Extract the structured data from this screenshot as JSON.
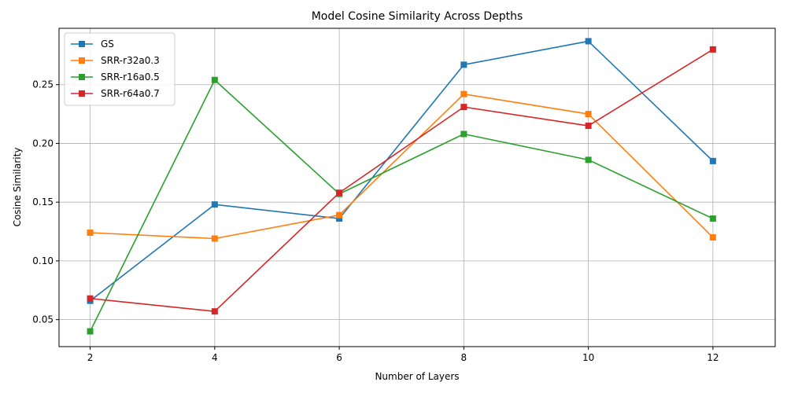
{
  "chart_data": {
    "type": "line",
    "title": "Model Cosine Similarity Across Depths",
    "xlabel": "Number of Layers",
    "ylabel": "Cosine Similarity",
    "x": [
      2,
      4,
      6,
      8,
      10,
      12
    ],
    "x_ticks": [
      "2",
      "4",
      "6",
      "8",
      "10",
      "12"
    ],
    "y_ticks": [
      "0.05",
      "0.10",
      "0.15",
      "0.20",
      "0.25"
    ],
    "y_tick_values": [
      0.05,
      0.1,
      0.15,
      0.2,
      0.25
    ],
    "xlim": [
      1.5,
      13.0
    ],
    "ylim": [
      0.027,
      0.298
    ],
    "grid": true,
    "legend_position": "top-left",
    "marker": "square",
    "series": [
      {
        "name": "GS",
        "color": "#1f77b4",
        "values": [
          0.066,
          0.148,
          0.136,
          0.267,
          0.287,
          0.185
        ]
      },
      {
        "name": "SRR-r32a0.3",
        "color": "#ff7f0e",
        "values": [
          0.124,
          0.119,
          0.139,
          0.242,
          0.225,
          0.12
        ]
      },
      {
        "name": "SRR-r16a0.5",
        "color": "#2ca02c",
        "values": [
          0.04,
          0.254,
          0.157,
          0.208,
          0.186,
          0.136
        ]
      },
      {
        "name": "SRR-r64a0.7",
        "color": "#d62728",
        "values": [
          0.068,
          0.057,
          0.158,
          0.231,
          0.215,
          0.28
        ]
      }
    ]
  }
}
